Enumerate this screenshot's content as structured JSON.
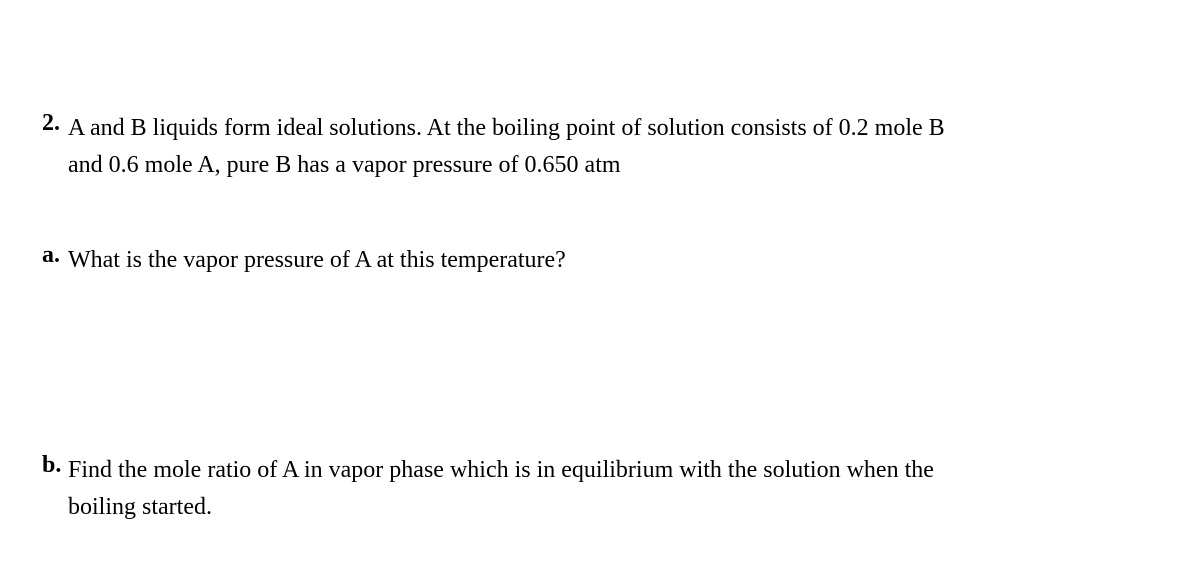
{
  "problem": {
    "number_label": "2.",
    "stem_line1": "A and B liquids form ideal solutions. At the boiling point of solution consists of 0.2 mole B",
    "stem_line2": "and 0.6 mole A, pure B has a vapor pressure of 0.650 atm",
    "parts": {
      "a": {
        "label": "a.",
        "text": "What is the vapor pressure of A at this temperature?"
      },
      "b": {
        "label": "b.",
        "text_line1": "Find the mole ratio of A in vapor phase which is in equilibrium with the solution when the",
        "text_line2": "boiling started."
      }
    }
  },
  "style": {
    "font_family": "Times New Roman",
    "font_size_pt": 18,
    "text_color": "#000000",
    "background_color": "#ffffff"
  }
}
